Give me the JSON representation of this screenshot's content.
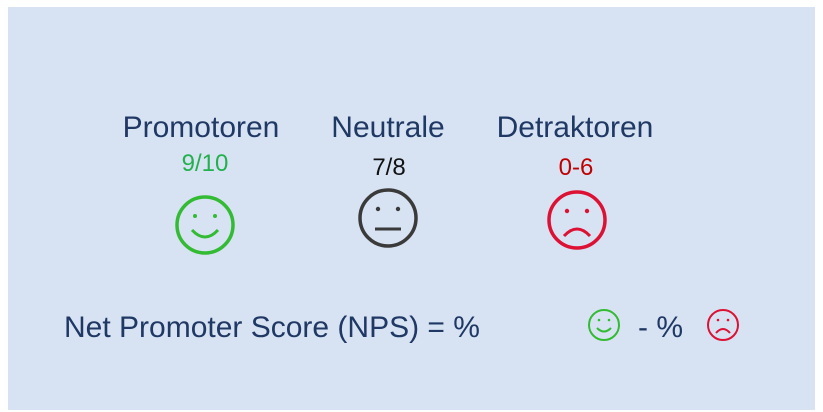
{
  "groups": [
    {
      "label": "Promotoren",
      "range": "9/10"
    },
    {
      "label": "Neutrale",
      "range": "7/8"
    },
    {
      "label": "Detraktoren",
      "range": "0-6"
    }
  ],
  "formula": {
    "left": "Net Promoter Score (NPS) = %",
    "middle": "- %"
  }
}
